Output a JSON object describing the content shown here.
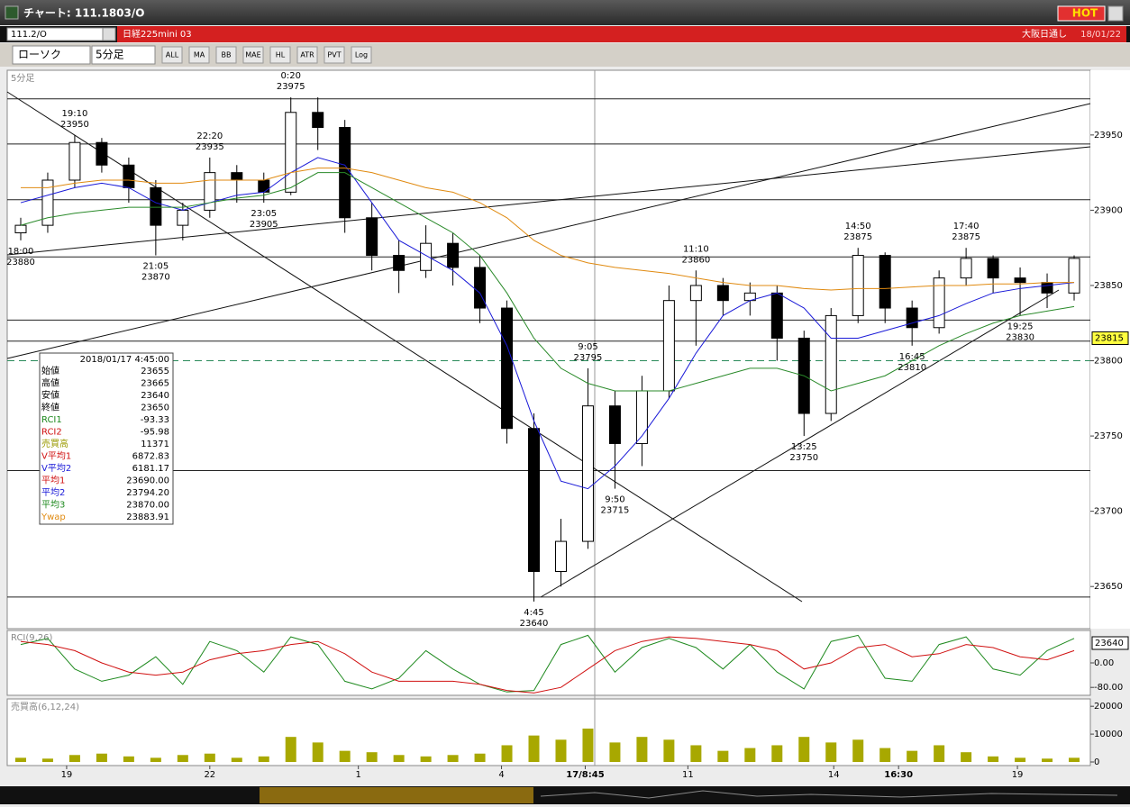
{
  "window": {
    "title": "チャート: 111.1803/O",
    "hot": "HOT"
  },
  "toolbar": {
    "symbol": "111.2/O",
    "name": "日経225mini 03",
    "session": "大阪日通し",
    "date": "18/01/22",
    "chart_style": "ローソク",
    "interval": "5分足",
    "buttons": [
      "ALL",
      "MA",
      "BB",
      "MAE",
      "HL",
      "ATR",
      "PVT",
      "Log"
    ]
  },
  "chart_data": {
    "type": "candlestick",
    "label": "5分足",
    "open": [
      23885,
      23890,
      23920,
      23945,
      23930,
      23915,
      23890,
      23900,
      23925,
      23920,
      23912,
      23965,
      23955,
      23895,
      23870,
      23860,
      23878,
      23862,
      23835,
      23755,
      23660,
      23680,
      23770,
      23745,
      23780,
      23840,
      23850,
      23840,
      23845,
      23815,
      23765,
      23830,
      23870,
      23835,
      23822,
      23855,
      23868,
      23855,
      23852,
      23845
    ],
    "high": [
      23895,
      23925,
      23950,
      23948,
      23935,
      23920,
      23905,
      23935,
      23930,
      23925,
      23975,
      23975,
      23960,
      23905,
      23880,
      23890,
      23885,
      23870,
      23840,
      23765,
      23695,
      23795,
      23780,
      23790,
      23850,
      23860,
      23855,
      23852,
      23850,
      23820,
      23835,
      23875,
      23872,
      23840,
      23860,
      23875,
      23870,
      23862,
      23858,
      23870
    ],
    "low": [
      23880,
      23885,
      23915,
      23925,
      23905,
      23870,
      23880,
      23895,
      23905,
      23905,
      23910,
      23940,
      23885,
      23860,
      23845,
      23855,
      23850,
      23825,
      23745,
      23640,
      23650,
      23675,
      23715,
      23730,
      23775,
      23810,
      23830,
      23830,
      23800,
      23750,
      23760,
      23825,
      23825,
      23810,
      23818,
      23850,
      23845,
      23830,
      23835,
      23840
    ],
    "close": [
      23890,
      23920,
      23945,
      23930,
      23915,
      23890,
      23900,
      23925,
      23920,
      23912,
      23965,
      23955,
      23895,
      23870,
      23860,
      23878,
      23862,
      23835,
      23755,
      23660,
      23680,
      23770,
      23745,
      23780,
      23840,
      23850,
      23840,
      23845,
      23815,
      23765,
      23830,
      23870,
      23835,
      23822,
      23855,
      23868,
      23855,
      23852,
      23845,
      23868
    ],
    "up_color": "#ffffff",
    "down_color": "#000000",
    "xlim": [
      -0.5,
      39.6
    ],
    "xticks": [
      {
        "value": 1.7,
        "label": "19"
      },
      {
        "value": 7,
        "label": "22"
      },
      {
        "value": 12.5,
        "label": "1"
      },
      {
        "value": 17.8,
        "label": "4"
      },
      {
        "value": 20.9,
        "label": "17/8:45"
      },
      {
        "value": 24.7,
        "label": "11"
      },
      {
        "value": 30.1,
        "label": "14"
      },
      {
        "value": 32.5,
        "label": "16:30"
      },
      {
        "value": 36.9,
        "label": "19"
      }
    ],
    "ylim": [
      23622,
      23993
    ],
    "yticks": [
      23650,
      23700,
      23750,
      23800,
      23850,
      23900,
      23950
    ],
    "overlays": [
      {
        "color": "#1a1ad8",
        "values": [
          23905,
          23910,
          23915,
          23918,
          23915,
          23905,
          23900,
          23905,
          23910,
          23912,
          23925,
          23935,
          23930,
          23905,
          23880,
          23870,
          23860,
          23845,
          23810,
          23760,
          23720,
          23715,
          23730,
          23750,
          23775,
          23805,
          23830,
          23840,
          23845,
          23835,
          23815,
          23815,
          23820,
          23825,
          23830,
          23838,
          23845,
          23848,
          23850,
          23852
        ]
      },
      {
        "color": "#2a8a2a",
        "values": [
          23890,
          23895,
          23898,
          23900,
          23902,
          23902,
          23902,
          23905,
          23908,
          23910,
          23915,
          23925,
          23925,
          23915,
          23905,
          23895,
          23885,
          23870,
          23845,
          23815,
          23795,
          23785,
          23780,
          23780,
          23780,
          23785,
          23790,
          23795,
          23795,
          23790,
          23780,
          23785,
          23790,
          23800,
          23810,
          23818,
          23825,
          23830,
          23833,
          23836
        ]
      },
      {
        "color": "#e08a10",
        "values": [
          23915,
          23915,
          23918,
          23920,
          23920,
          23918,
          23918,
          23920,
          23920,
          23920,
          23925,
          23928,
          23928,
          23925,
          23920,
          23915,
          23912,
          23905,
          23895,
          23880,
          23870,
          23865,
          23862,
          23860,
          23858,
          23855,
          23852,
          23850,
          23850,
          23848,
          23847,
          23848,
          23848,
          23849,
          23850,
          23850,
          23851,
          23851,
          23852,
          23852
        ]
      }
    ],
    "hlines": [
      23974,
      23944,
      23907,
      23869,
      23827,
      23813,
      23727,
      23643
    ],
    "dashed_level": 23800,
    "current_price": 23815,
    "annotations": [
      {
        "time": "18:00",
        "price": 23880,
        "candle": 0,
        "pos": "below"
      },
      {
        "time": "19:10",
        "price": 23950,
        "candle": 2,
        "pos": "above"
      },
      {
        "time": "21:05",
        "price": 23870,
        "candle": 5,
        "pos": "below"
      },
      {
        "time": "22:20",
        "price": 23935,
        "candle": 7,
        "pos": "above"
      },
      {
        "time": "23:05",
        "price": 23905,
        "candle": 9,
        "pos": "below"
      },
      {
        "time": "0:20",
        "price": 23975,
        "candle": 10,
        "pos": "above"
      },
      {
        "time": "4:45",
        "price": 23640,
        "candle": 19,
        "pos": "below"
      },
      {
        "time": "9:05",
        "price": 23795,
        "candle": 21,
        "pos": "above"
      },
      {
        "time": "9:50",
        "price": 23715,
        "candle": 22,
        "pos": "below"
      },
      {
        "time": "11:10",
        "price": 23860,
        "candle": 25,
        "pos": "above"
      },
      {
        "time": "13:25",
        "price": 23750,
        "candle": 29,
        "pos": "below"
      },
      {
        "time": "14:50",
        "price": 23875,
        "candle": 31,
        "pos": "above"
      },
      {
        "time": "16:45",
        "price": 23810,
        "candle": 33,
        "pos": "below"
      },
      {
        "time": "17:40",
        "price": 23875,
        "candle": 35,
        "pos": "above"
      },
      {
        "time": "19:25",
        "price": 23830,
        "candle": 37,
        "pos": "below"
      }
    ]
  },
  "info_box": {
    "timestamp": "2018/01/17 4:45:00",
    "rows": [
      {
        "label": "始値",
        "value": "23655",
        "color": "#000000"
      },
      {
        "label": "高値",
        "value": "23665",
        "color": "#000000"
      },
      {
        "label": "安値",
        "value": "23640",
        "color": "#000000"
      },
      {
        "label": "終値",
        "value": "23650",
        "color": "#000000"
      },
      {
        "label": "RCI1",
        "value": "-93.33",
        "color": "#1f8a1f"
      },
      {
        "label": "RCI2",
        "value": "-95.98",
        "color": "#d01010"
      },
      {
        "label": "売買高",
        "value": "11371",
        "color": "#9a9a00"
      },
      {
        "label": "V平均1",
        "value": "6872.83",
        "color": "#d01010"
      },
      {
        "label": "V平均2",
        "value": "6181.17",
        "color": "#1a1ad8"
      },
      {
        "label": "平均1",
        "value": "23690.00",
        "color": "#d01010"
      },
      {
        "label": "平均2",
        "value": "23794.20",
        "color": "#1a1ad8"
      },
      {
        "label": "平均3",
        "value": "23870.00",
        "color": "#1f8a1f"
      },
      {
        "label": "Ywap",
        "value": "23883.91",
        "color": "#e08a10"
      }
    ]
  },
  "rci": {
    "title": "RCI(9,26)",
    "ylim": [
      -100,
      100
    ],
    "yticks": [
      {
        "value": 0,
        "label": "0.00"
      },
      {
        "value": -80,
        "label": "-80.00"
      }
    ],
    "marker": "23640",
    "series": [
      {
        "color": "#1f8a1f",
        "values": [
          60,
          80,
          -20,
          -60,
          -40,
          20,
          -70,
          70,
          40,
          -30,
          85,
          60,
          -60,
          -85,
          -50,
          40,
          -20,
          -70,
          -95,
          -90,
          60,
          90,
          -30,
          50,
          80,
          50,
          -20,
          60,
          -30,
          -85,
          70,
          90,
          -50,
          -60,
          60,
          85,
          -20,
          -40,
          40,
          80
        ]
      },
      {
        "color": "#d01010",
        "values": [
          70,
          60,
          40,
          0,
          -30,
          -40,
          -30,
          10,
          30,
          40,
          60,
          70,
          30,
          -30,
          -60,
          -60,
          -60,
          -70,
          -90,
          -98,
          -80,
          -20,
          40,
          70,
          85,
          80,
          70,
          60,
          40,
          -20,
          0,
          50,
          60,
          20,
          30,
          60,
          50,
          20,
          10,
          40
        ]
      }
    ]
  },
  "volume": {
    "title": "売買高(6,12,24)",
    "color": "#a8a800",
    "ylim": [
      0,
      22000
    ],
    "yticks": [
      0,
      10000,
      20000
    ],
    "values": [
      1500,
      1200,
      2500,
      3000,
      2000,
      1500,
      2500,
      3000,
      1500,
      2000,
      9000,
      7000,
      4000,
      3500,
      2500,
      2000,
      2500,
      3000,
      6000,
      9500,
      8000,
      12000,
      7000,
      9000,
      8000,
      6000,
      4000,
      5000,
      6000,
      9000,
      7000,
      8000,
      5000,
      4000,
      6000,
      3500,
      2000,
      1500,
      1200,
      1500
    ]
  }
}
